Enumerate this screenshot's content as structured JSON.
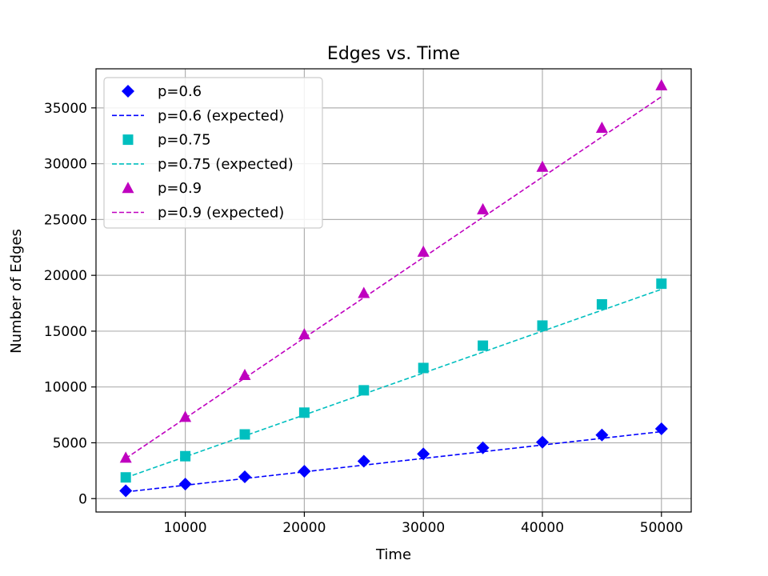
{
  "chart_data": {
    "type": "scatter",
    "title": "Edges vs. Time",
    "xlabel": "Time",
    "ylabel": "Number of Edges",
    "xlim": [
      2500,
      52500
    ],
    "ylim": [
      -1200,
      38500
    ],
    "xticks": [
      10000,
      20000,
      30000,
      40000,
      50000
    ],
    "yticks": [
      0,
      5000,
      10000,
      15000,
      20000,
      25000,
      30000,
      35000
    ],
    "grid": true,
    "legend_position": "top-left",
    "x": [
      5000,
      10000,
      15000,
      20000,
      25000,
      30000,
      35000,
      40000,
      45000,
      50000
    ],
    "series": [
      {
        "name": "p=0.6",
        "kind": "markers",
        "marker": "diamond",
        "color": "#0000ff",
        "values": [
          700,
          1300,
          1950,
          2450,
          3350,
          4000,
          4550,
          5050,
          5700,
          6250
        ]
      },
      {
        "name": "p=0.6 (expected)",
        "kind": "dashed-line",
        "color": "#0000ff",
        "values": [
          600,
          1200,
          1800,
          2400,
          3000,
          3600,
          4200,
          4800,
          5400,
          6000
        ]
      },
      {
        "name": "p=0.75",
        "kind": "markers",
        "marker": "square",
        "color": "#00bfbf",
        "values": [
          1900,
          3800,
          5750,
          7700,
          9700,
          11700,
          13700,
          15500,
          17400,
          19250
        ]
      },
      {
        "name": "p=0.75 (expected)",
        "kind": "dashed-line",
        "color": "#00bfbf",
        "values": [
          1875,
          3750,
          5625,
          7500,
          9375,
          11250,
          13125,
          15000,
          16875,
          18750
        ]
      },
      {
        "name": "p=0.9",
        "kind": "markers",
        "marker": "triangle",
        "color": "#bf00bf",
        "values": [
          3650,
          7300,
          11050,
          14700,
          18400,
          22100,
          25900,
          29700,
          33200,
          37000
        ]
      },
      {
        "name": "p=0.9 (expected)",
        "kind": "dashed-line",
        "color": "#bf00bf",
        "values": [
          3600,
          7200,
          10800,
          14400,
          18000,
          21600,
          25200,
          28800,
          32400,
          36000
        ]
      }
    ]
  }
}
